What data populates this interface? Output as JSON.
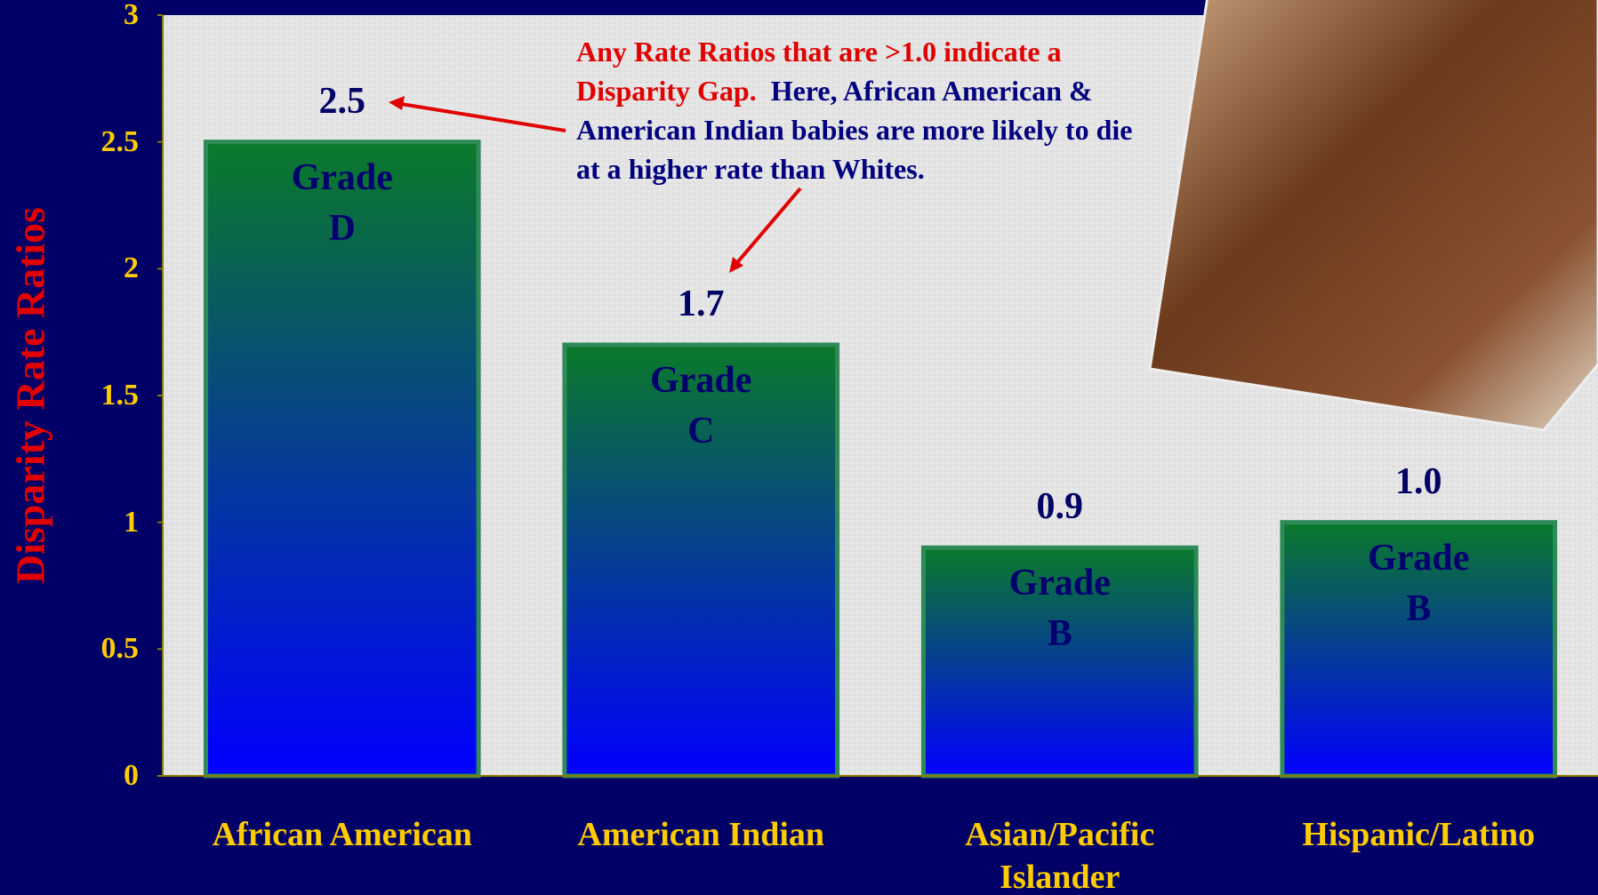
{
  "chart_data": {
    "type": "bar",
    "y_label": "Disparity Rate Ratios",
    "categories": [
      "African American",
      "American Indian",
      "Asian/Pacific Islander",
      "Hispanic/Latino"
    ],
    "values": [
      2.5,
      1.7,
      0.9,
      1.0
    ],
    "value_labels": [
      "2.5",
      "1.7",
      "0.9",
      "1.0"
    ],
    "grades": [
      [
        "Grade",
        "D"
      ],
      [
        "Grade",
        "C"
      ],
      [
        "Grade",
        "B"
      ],
      [
        "Grade",
        "B"
      ]
    ],
    "ylim": [
      0,
      3
    ],
    "yticks": [
      0,
      0.5,
      1,
      1.5,
      2,
      2.5,
      3
    ],
    "colors": {
      "top": "#0b7a2a",
      "bottom": "#0000ff",
      "border": "#2e8b57"
    },
    "annotation": {
      "highlight": "Any Rate Ratios that are >1.0 indicate a Disparity Gap.",
      "text": "Here, African American & American Indian babies are more likely to die at a higher rate than Whites."
    }
  }
}
